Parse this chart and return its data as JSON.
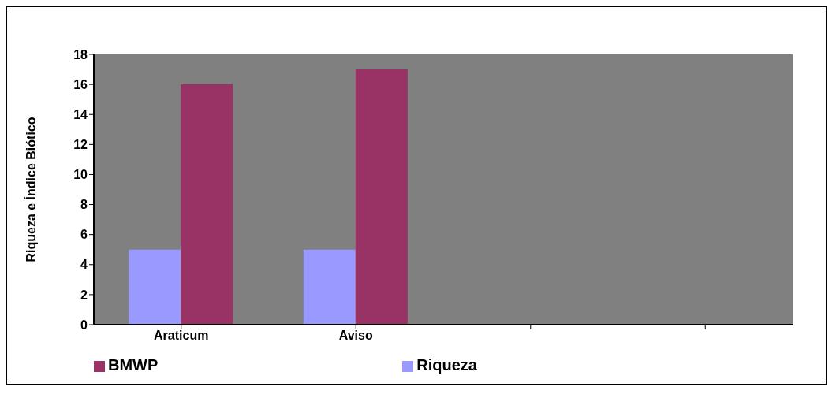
{
  "chart_data": {
    "type": "bar",
    "ylabel": "Riqueza e Índice Biótico",
    "categories": [
      "Araticum",
      "Aviso",
      null,
      null
    ],
    "series": [
      {
        "name": "Riqueza",
        "color": "#9999ff",
        "values": [
          5,
          5,
          null,
          null
        ]
      },
      {
        "name": "BMWP",
        "color": "#993366",
        "values": [
          16,
          17,
          null,
          null
        ]
      }
    ],
    "ylim": [
      0,
      18
    ],
    "yticks": [
      0,
      2,
      4,
      6,
      8,
      10,
      12,
      14,
      16,
      18
    ],
    "grid": false,
    "legend": "bottom"
  }
}
